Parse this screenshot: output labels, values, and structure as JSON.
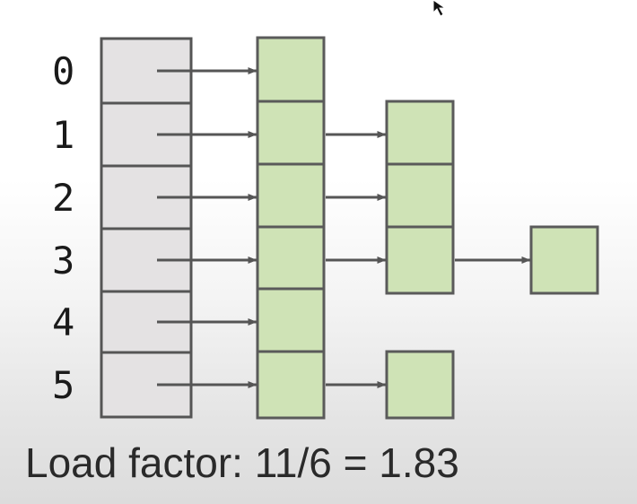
{
  "indices": [
    "0",
    "1",
    "2",
    "3",
    "4",
    "5"
  ],
  "chains": [
    1,
    2,
    2,
    3,
    1,
    2
  ],
  "colors": {
    "bucket_fill": "#e4e2e3",
    "bucket_stroke": "#555555",
    "node_fill": "#cfe3b6",
    "node_stroke": "#5a5a5a",
    "arrow": "#555555",
    "label_text": "#1a1a1a"
  },
  "caption": "Load factor: 11/6 = 1.83",
  "icons": [
    "cursor-arrow-icon"
  ]
}
